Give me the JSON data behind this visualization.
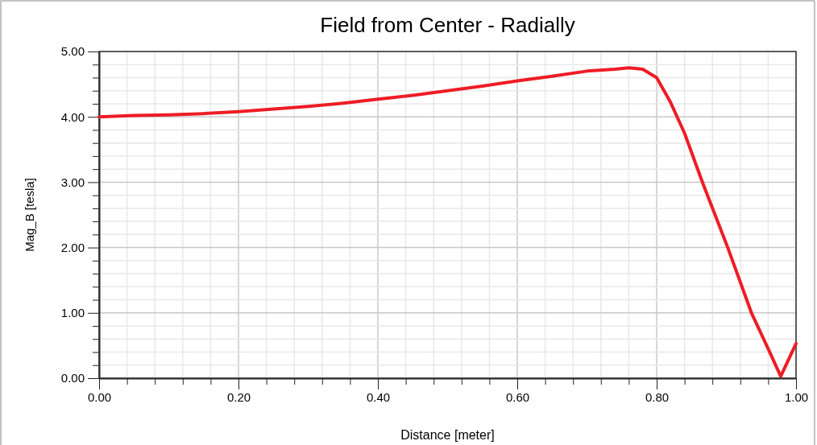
{
  "chart_data": {
    "type": "line",
    "title": "Field from Center - Radially",
    "xlabel": "Distance [meter]",
    "ylabel": "Mag_B [tesla]",
    "x": [
      0,
      0.05,
      0.1,
      0.15,
      0.2,
      0.25,
      0.3,
      0.35,
      0.4,
      0.45,
      0.5,
      0.55,
      0.6,
      0.65,
      0.7,
      0.74,
      0.76,
      0.78,
      0.8,
      0.82,
      0.84,
      0.866,
      0.902,
      0.936,
      0.96,
      0.978,
      1.0
    ],
    "series": [
      {
        "color": "#ee1c25",
        "values": [
          4.0,
          4.02,
          4.03,
          4.05,
          4.08,
          4.12,
          4.16,
          4.21,
          4.27,
          4.33,
          4.4,
          4.47,
          4.55,
          4.62,
          4.7,
          4.73,
          4.75,
          4.73,
          4.6,
          4.22,
          3.75,
          2.99,
          2.0,
          1.0,
          0.45,
          0.03,
          0.53
        ]
      }
    ],
    "xlim": [
      0,
      1
    ],
    "ylim": [
      0,
      5
    ],
    "xticks": [
      {
        "value": 0,
        "label": "0.00"
      },
      {
        "value": 0.04,
        "label": null
      },
      {
        "value": 0.08,
        "label": null
      },
      {
        "value": 0.12,
        "label": null
      },
      {
        "value": 0.16,
        "label": null
      },
      {
        "value": 0.2,
        "label": "0.20"
      },
      {
        "value": 0.24,
        "label": null
      },
      {
        "value": 0.28,
        "label": null
      },
      {
        "value": 0.32,
        "label": null
      },
      {
        "value": 0.36,
        "label": null
      },
      {
        "value": 0.4,
        "label": "0.40"
      },
      {
        "value": 0.44,
        "label": null
      },
      {
        "value": 0.48,
        "label": null
      },
      {
        "value": 0.52,
        "label": null
      },
      {
        "value": 0.56,
        "label": null
      },
      {
        "value": 0.6,
        "label": "0.60"
      },
      {
        "value": 0.64,
        "label": null
      },
      {
        "value": 0.68,
        "label": null
      },
      {
        "value": 0.72,
        "label": null
      },
      {
        "value": 0.76,
        "label": null
      },
      {
        "value": 0.8,
        "label": "0.80"
      },
      {
        "value": 0.84,
        "label": null
      },
      {
        "value": 0.88,
        "label": null
      },
      {
        "value": 0.92,
        "label": null
      },
      {
        "value": 0.96,
        "label": null
      },
      {
        "value": 1,
        "label": "1.00"
      }
    ],
    "yticks": [
      {
        "value": 0,
        "label": "0.00"
      },
      {
        "value": 0.2,
        "label": null
      },
      {
        "value": 0.4,
        "label": null
      },
      {
        "value": 0.6,
        "label": null
      },
      {
        "value": 0.8,
        "label": null
      },
      {
        "value": 1,
        "label": "1.00"
      },
      {
        "value": 1.2,
        "label": null
      },
      {
        "value": 1.4,
        "label": null
      },
      {
        "value": 1.6,
        "label": null
      },
      {
        "value": 1.8,
        "label": null
      },
      {
        "value": 2,
        "label": "2.00"
      },
      {
        "value": 2.2,
        "label": null
      },
      {
        "value": 2.4,
        "label": null
      },
      {
        "value": 2.6,
        "label": null
      },
      {
        "value": 2.8,
        "label": null
      },
      {
        "value": 3,
        "label": "3.00"
      },
      {
        "value": 3.2,
        "label": null
      },
      {
        "value": 3.4,
        "label": null
      },
      {
        "value": 3.6,
        "label": null
      },
      {
        "value": 3.8,
        "label": null
      },
      {
        "value": 4,
        "label": "4.00"
      },
      {
        "value": 4.2,
        "label": null
      },
      {
        "value": 4.4,
        "label": null
      },
      {
        "value": 4.6,
        "label": null
      },
      {
        "value": 4.8,
        "label": null
      },
      {
        "value": 5,
        "label": "5.00"
      }
    ],
    "grid": true,
    "line_style": "solid",
    "marker": "none"
  }
}
